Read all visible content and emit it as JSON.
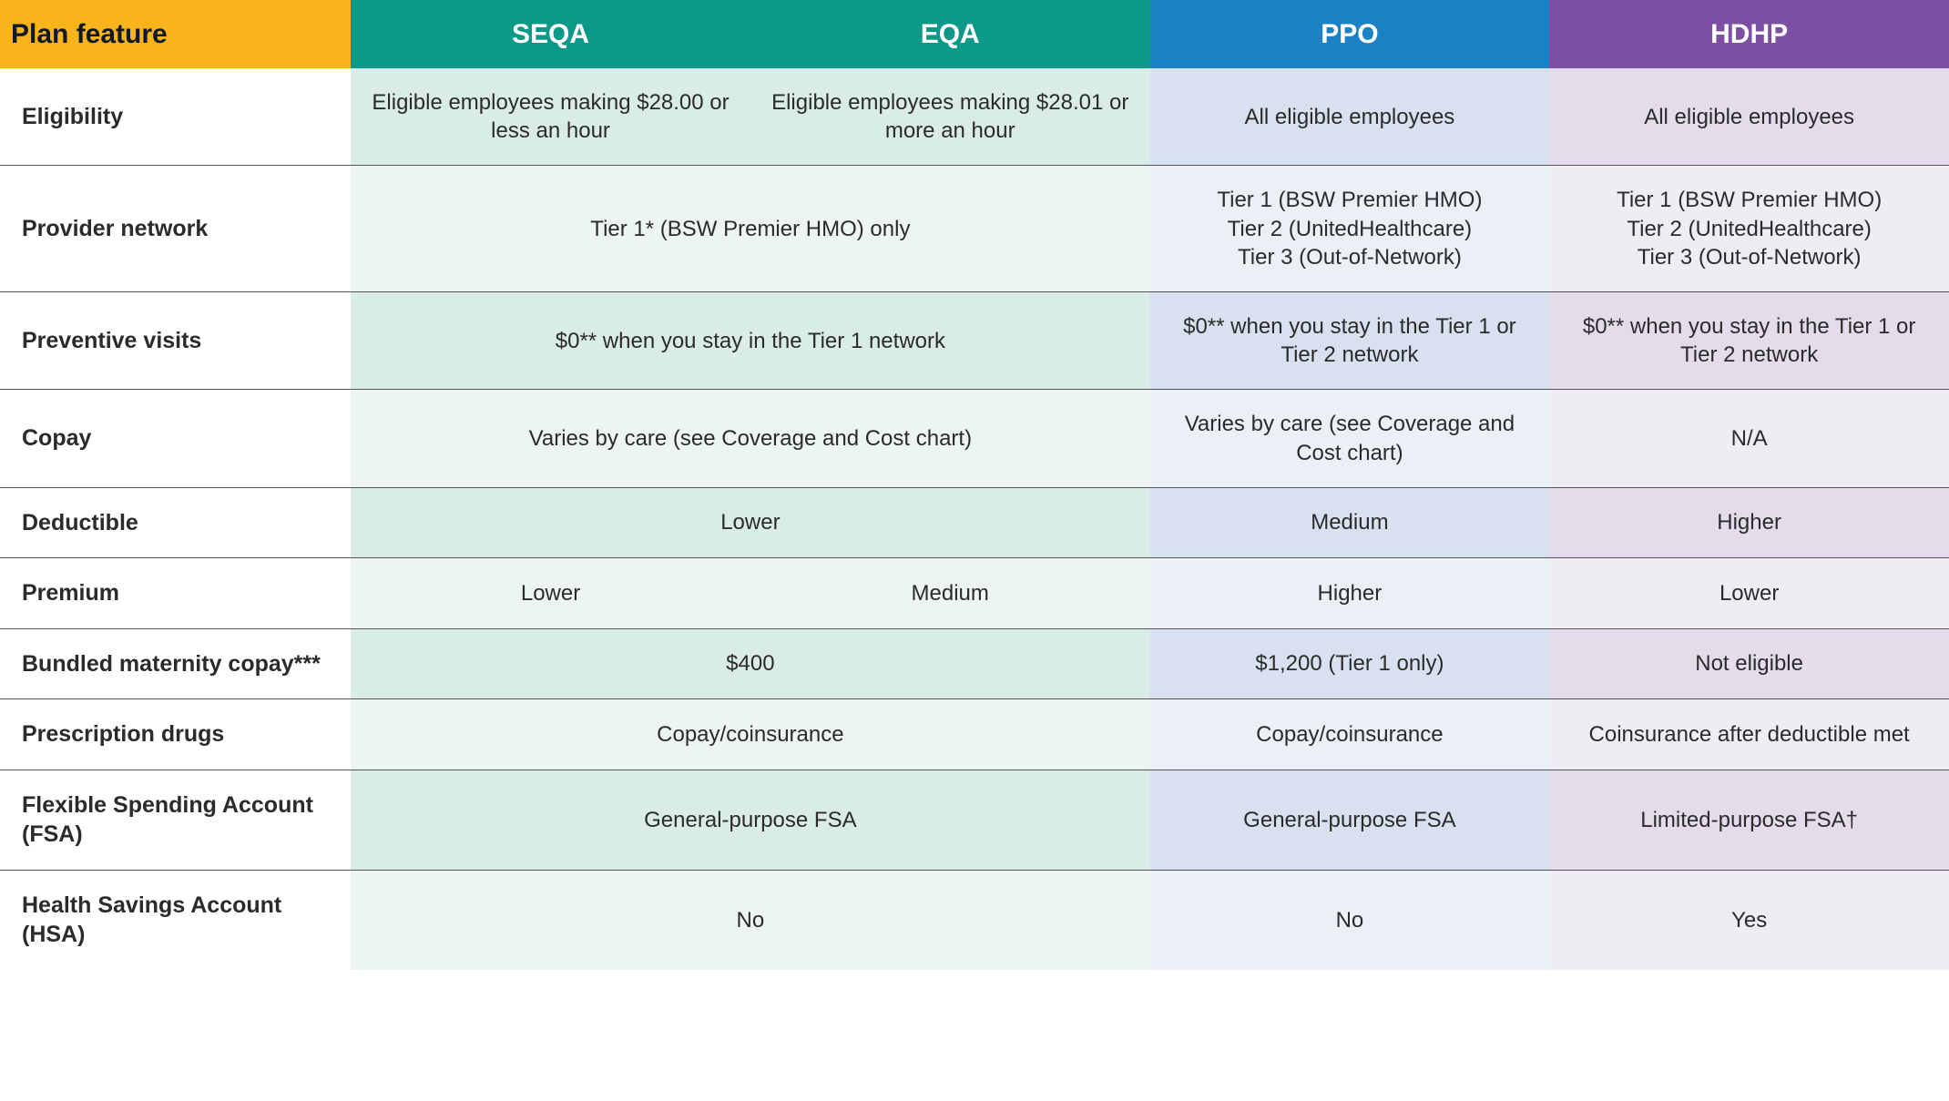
{
  "table": {
    "border_color": "#555555",
    "col_widths": [
      "18%",
      "20.5%",
      "20.5%",
      "20.5%",
      "20.5%"
    ],
    "header": {
      "feature": {
        "label": "Plan feature",
        "bg": "#f9b31b",
        "fg": "#0e1a2a"
      },
      "cols": [
        {
          "id": "seqa",
          "label": "SEQA",
          "bg": "#0c9988"
        },
        {
          "id": "eqa",
          "label": "EQA",
          "bg": "#0c9988"
        },
        {
          "id": "ppo",
          "label": "PPO",
          "bg": "#1b82c5"
        },
        {
          "id": "hdhp",
          "label": "HDHP",
          "bg": "#7c4fa3"
        }
      ],
      "fg": "#ffffff"
    },
    "shading": {
      "seqa": {
        "odd": "#d9ece7",
        "even": "#ecf5f2"
      },
      "eqa": {
        "odd": "#d9ece7",
        "even": "#ecf5f2"
      },
      "ppo": {
        "odd": "#d7e1ef",
        "even": "#ebf0f7"
      },
      "hdhp": {
        "odd": "#e3dceb",
        "even": "#f0ecf4"
      }
    },
    "rows": [
      {
        "key": "eligibility",
        "label": "Eligibility",
        "cells": [
          {
            "span": 1,
            "col": "seqa",
            "text": "Eligible employees making $28.00 or less an hour"
          },
          {
            "span": 1,
            "col": "eqa",
            "text": "Eligible employees making $28.01 or more an hour"
          },
          {
            "span": 1,
            "col": "ppo",
            "text": "All eligible employees"
          },
          {
            "span": 1,
            "col": "hdhp",
            "text": "All eligible employees"
          }
        ]
      },
      {
        "key": "provider-network",
        "label": "Provider network",
        "cells": [
          {
            "span": 2,
            "col": "seqa",
            "text": "Tier 1* (BSW Premier HMO) only"
          },
          {
            "span": 1,
            "col": "ppo",
            "text": "Tier 1 (BSW Premier HMO)\nTier 2 (UnitedHealthcare)\nTier 3 (Out-of-Network)"
          },
          {
            "span": 1,
            "col": "hdhp",
            "text": "Tier 1 (BSW Premier HMO)\nTier 2 (UnitedHealthcare)\nTier 3 (Out-of-Network)"
          }
        ]
      },
      {
        "key": "preventive-visits",
        "label": "Preventive visits",
        "cells": [
          {
            "span": 2,
            "col": "seqa",
            "text": "$0** when you stay in the Tier 1 network"
          },
          {
            "span": 1,
            "col": "ppo",
            "text": "$0** when you stay in the Tier 1 or Tier 2 network"
          },
          {
            "span": 1,
            "col": "hdhp",
            "text": "$0** when you stay in the Tier 1 or Tier 2 network"
          }
        ]
      },
      {
        "key": "copay",
        "label": "Copay",
        "cells": [
          {
            "span": 2,
            "col": "seqa",
            "text": "Varies by care (see Coverage and Cost chart)"
          },
          {
            "span": 1,
            "col": "ppo",
            "text": "Varies by care (see Coverage and Cost chart)"
          },
          {
            "span": 1,
            "col": "hdhp",
            "text": "N/A"
          }
        ]
      },
      {
        "key": "deductible",
        "label": "Deductible",
        "cells": [
          {
            "span": 2,
            "col": "seqa",
            "text": "Lower"
          },
          {
            "span": 1,
            "col": "ppo",
            "text": "Medium"
          },
          {
            "span": 1,
            "col": "hdhp",
            "text": "Higher"
          }
        ]
      },
      {
        "key": "premium",
        "label": "Premium",
        "cells": [
          {
            "span": 1,
            "col": "seqa",
            "text": "Lower"
          },
          {
            "span": 1,
            "col": "eqa",
            "text": "Medium"
          },
          {
            "span": 1,
            "col": "ppo",
            "text": "Higher"
          },
          {
            "span": 1,
            "col": "hdhp",
            "text": "Lower"
          }
        ]
      },
      {
        "key": "maternity",
        "label": "Bundled maternity copay***",
        "cells": [
          {
            "span": 2,
            "col": "seqa",
            "text": "$400"
          },
          {
            "span": 1,
            "col": "ppo",
            "text": "$1,200 (Tier 1 only)"
          },
          {
            "span": 1,
            "col": "hdhp",
            "text": "Not eligible"
          }
        ]
      },
      {
        "key": "rx",
        "label": "Prescription drugs",
        "cells": [
          {
            "span": 2,
            "col": "seqa",
            "text": "Copay/coinsurance"
          },
          {
            "span": 1,
            "col": "ppo",
            "text": "Copay/coinsurance"
          },
          {
            "span": 1,
            "col": "hdhp",
            "text": "Coinsurance after deductible met"
          }
        ]
      },
      {
        "key": "fsa",
        "label": "Flexible Spending Account (FSA)",
        "cells": [
          {
            "span": 2,
            "col": "seqa",
            "text": "General-purpose FSA"
          },
          {
            "span": 1,
            "col": "ppo",
            "text": "General-purpose FSA"
          },
          {
            "span": 1,
            "col": "hdhp",
            "text": "Limited-purpose FSA†"
          }
        ]
      },
      {
        "key": "hsa",
        "label": "Health Savings Account (HSA)",
        "cells": [
          {
            "span": 2,
            "col": "seqa",
            "text": "No"
          },
          {
            "span": 1,
            "col": "ppo",
            "text": "No"
          },
          {
            "span": 1,
            "col": "hdhp",
            "text": "Yes"
          }
        ]
      }
    ]
  }
}
